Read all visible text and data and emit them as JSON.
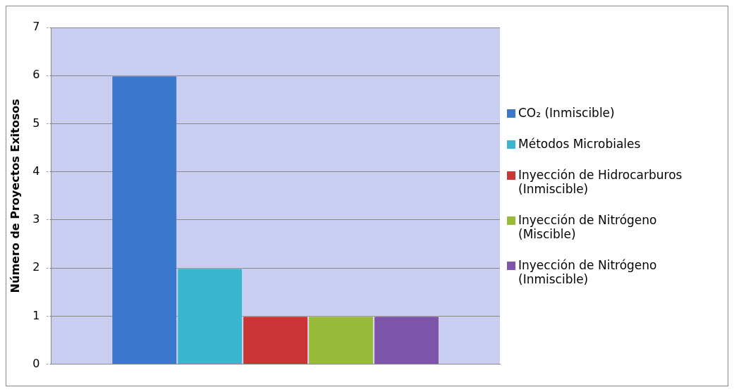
{
  "chart_data": {
    "type": "bar",
    "ylabel": "Número de Proyectos Exitosos",
    "categories": [
      null
    ],
    "series": [
      {
        "name": "CO₂ (Inmiscible)",
        "color": "#3b78cc",
        "values": [
          6
        ]
      },
      {
        "name": "Métodos Microbiales",
        "color": "#3ab6cf",
        "values": [
          2
        ]
      },
      {
        "name": "Inyección de Hidrocarburos (Inmiscible)",
        "color": "#cc3535",
        "values": [
          1
        ]
      },
      {
        "name": "Inyección de Nitrógeno (Miscible)",
        "color": "#98bb3a",
        "values": [
          1
        ]
      },
      {
        "name": "Inyección de Nitrógeno (Inmiscible)",
        "color": "#7e55aa",
        "values": [
          1
        ]
      }
    ],
    "ylim": [
      0,
      7
    ],
    "yticks": [
      0,
      1,
      2,
      3,
      4,
      5,
      6,
      7
    ],
    "grid": "y",
    "legend": "right"
  }
}
